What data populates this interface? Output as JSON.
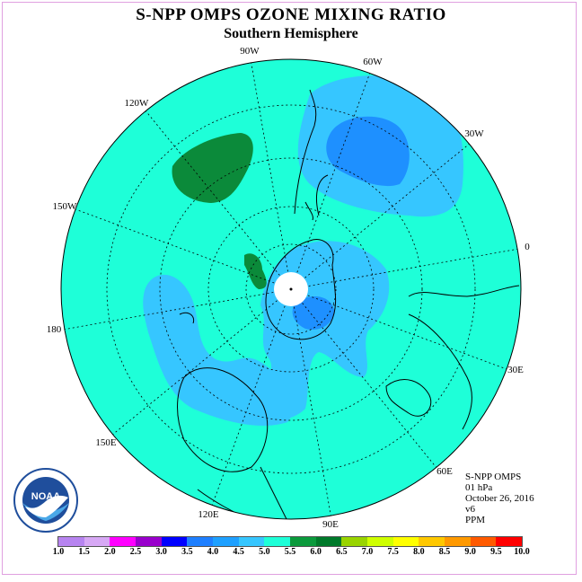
{
  "title": "S-NPP OMPS OZONE MIXING RATIO",
  "subtitle": "Southern Hemisphere",
  "longitude_labels": [
    "90W",
    "60W",
    "30W",
    "0",
    "30E",
    "60E",
    "90E",
    "120E",
    "150E",
    "180",
    "150W",
    "120W"
  ],
  "info": {
    "instrument": "S-NPP OMPS",
    "level": "01 hPa",
    "date": "October 26, 2016",
    "version": "v6",
    "units": "PPM"
  },
  "logo": {
    "text": "NOAA",
    "icon": "noaa-logo"
  },
  "colorbar": {
    "ticks": [
      "1.0",
      "1.5",
      "2.0",
      "2.5",
      "3.0",
      "3.5",
      "4.0",
      "4.5",
      "5.0",
      "5.5",
      "6.0",
      "6.5",
      "7.0",
      "7.5",
      "8.0",
      "8.5",
      "9.0",
      "9.5",
      "10.0"
    ],
    "colors": [
      "#b784f0",
      "#d7a8f5",
      "#ff00ff",
      "#9900cc",
      "#0000ff",
      "#1e7fff",
      "#1ea0ff",
      "#36c6ff",
      "#1effd8",
      "#0b9a3c",
      "#007a2a",
      "#99d400",
      "#cfff00",
      "#ffff00",
      "#ffc800",
      "#ff9900",
      "#ff5a00",
      "#ff0000",
      "#8a5a3a"
    ]
  },
  "map_colors": {
    "background": "#1effd8",
    "light_blue": "#36c6ff",
    "mid_blue": "#1e90ff",
    "green": "#0b8a3a",
    "pole": "#ffffff"
  }
}
